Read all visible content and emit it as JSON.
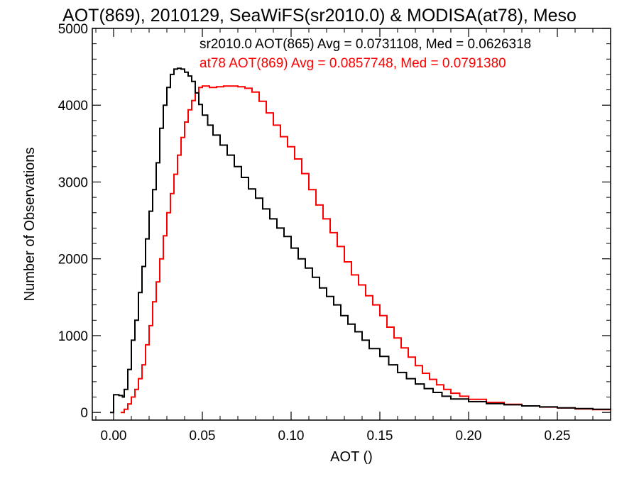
{
  "chart_data": {
    "type": "line",
    "title": "AOT(869), 2010129, SeaWiFS(sr2010.0) & MODISA(at78), Meso",
    "xlabel": "AOT ()",
    "ylabel": "Number of Observations",
    "xlim": [
      -0.012,
      0.28
    ],
    "ylim": [
      -100,
      5000
    ],
    "x_ticks": [
      0.0,
      0.05,
      0.1,
      0.15,
      0.2,
      0.25
    ],
    "x_tick_labels": [
      "0.00",
      "0.05",
      "0.10",
      "0.15",
      "0.20",
      "0.25"
    ],
    "y_ticks": [
      0,
      1000,
      2000,
      3000,
      4000,
      5000
    ],
    "y_tick_labels": [
      "0",
      "1000",
      "2000",
      "3000",
      "4000",
      "5000"
    ],
    "grid": false,
    "legend_position": "top-right",
    "series": [
      {
        "name": "sr2010.0 AOT(865) Avg = 0.0731108, Med = 0.0626318",
        "color": "#000000",
        "style": "step",
        "points": [
          [
            -0.002,
            0
          ],
          [
            0.0,
            230
          ],
          [
            0.003,
            220
          ],
          [
            0.005,
            200
          ],
          [
            0.006,
            300
          ],
          [
            0.008,
            560
          ],
          [
            0.01,
            940
          ],
          [
            0.012,
            1200
          ],
          [
            0.014,
            1560
          ],
          [
            0.016,
            1900
          ],
          [
            0.018,
            2260
          ],
          [
            0.02,
            2620
          ],
          [
            0.022,
            2900
          ],
          [
            0.024,
            3250
          ],
          [
            0.026,
            3700
          ],
          [
            0.028,
            4000
          ],
          [
            0.03,
            4230
          ],
          [
            0.032,
            4400
          ],
          [
            0.034,
            4470
          ],
          [
            0.036,
            4480
          ],
          [
            0.038,
            4470
          ],
          [
            0.04,
            4430
          ],
          [
            0.042,
            4380
          ],
          [
            0.044,
            4310
          ],
          [
            0.046,
            4160
          ],
          [
            0.048,
            4010
          ],
          [
            0.05,
            3870
          ],
          [
            0.053,
            3740
          ],
          [
            0.056,
            3610
          ],
          [
            0.06,
            3480
          ],
          [
            0.064,
            3350
          ],
          [
            0.068,
            3200
          ],
          [
            0.072,
            3060
          ],
          [
            0.076,
            2910
          ],
          [
            0.08,
            2790
          ],
          [
            0.084,
            2650
          ],
          [
            0.088,
            2520
          ],
          [
            0.092,
            2400
          ],
          [
            0.096,
            2290
          ],
          [
            0.1,
            2140
          ],
          [
            0.104,
            2000
          ],
          [
            0.108,
            1880
          ],
          [
            0.112,
            1760
          ],
          [
            0.116,
            1620
          ],
          [
            0.12,
            1510
          ],
          [
            0.124,
            1400
          ],
          [
            0.128,
            1260
          ],
          [
            0.132,
            1150
          ],
          [
            0.136,
            1050
          ],
          [
            0.14,
            940
          ],
          [
            0.144,
            830
          ],
          [
            0.15,
            730
          ],
          [
            0.155,
            620
          ],
          [
            0.16,
            520
          ],
          [
            0.165,
            440
          ],
          [
            0.17,
            370
          ],
          [
            0.175,
            310
          ],
          [
            0.18,
            260
          ],
          [
            0.185,
            210
          ],
          [
            0.19,
            175
          ],
          [
            0.2,
            140
          ],
          [
            0.21,
            115
          ],
          [
            0.22,
            100
          ],
          [
            0.23,
            85
          ],
          [
            0.24,
            72
          ],
          [
            0.25,
            60
          ],
          [
            0.26,
            50
          ],
          [
            0.27,
            40
          ],
          [
            0.28,
            32
          ]
        ]
      },
      {
        "name": "at78 AOT(869) Avg = 0.0857748, Med = 0.0791380",
        "color": "#ff0000",
        "style": "step",
        "points": [
          [
            0.004,
            0
          ],
          [
            0.006,
            40
          ],
          [
            0.008,
            110
          ],
          [
            0.01,
            200
          ],
          [
            0.012,
            300
          ],
          [
            0.014,
            440
          ],
          [
            0.016,
            620
          ],
          [
            0.018,
            880
          ],
          [
            0.02,
            1130
          ],
          [
            0.022,
            1440
          ],
          [
            0.024,
            1700
          ],
          [
            0.026,
            2000
          ],
          [
            0.028,
            2300
          ],
          [
            0.03,
            2600
          ],
          [
            0.032,
            2850
          ],
          [
            0.034,
            3100
          ],
          [
            0.036,
            3350
          ],
          [
            0.038,
            3580
          ],
          [
            0.04,
            3780
          ],
          [
            0.042,
            3940
          ],
          [
            0.044,
            4060
          ],
          [
            0.046,
            4160
          ],
          [
            0.048,
            4230
          ],
          [
            0.05,
            4250
          ],
          [
            0.054,
            4230
          ],
          [
            0.058,
            4240
          ],
          [
            0.062,
            4250
          ],
          [
            0.066,
            4250
          ],
          [
            0.07,
            4240
          ],
          [
            0.074,
            4220
          ],
          [
            0.078,
            4170
          ],
          [
            0.082,
            4050
          ],
          [
            0.086,
            3900
          ],
          [
            0.09,
            3740
          ],
          [
            0.094,
            3590
          ],
          [
            0.098,
            3460
          ],
          [
            0.102,
            3300
          ],
          [
            0.106,
            3110
          ],
          [
            0.11,
            2900
          ],
          [
            0.114,
            2700
          ],
          [
            0.118,
            2520
          ],
          [
            0.122,
            2340
          ],
          [
            0.126,
            2160
          ],
          [
            0.13,
            1960
          ],
          [
            0.134,
            1790
          ],
          [
            0.138,
            1660
          ],
          [
            0.142,
            1520
          ],
          [
            0.146,
            1400
          ],
          [
            0.15,
            1260
          ],
          [
            0.154,
            1110
          ],
          [
            0.158,
            970
          ],
          [
            0.162,
            840
          ],
          [
            0.166,
            720
          ],
          [
            0.17,
            610
          ],
          [
            0.174,
            510
          ],
          [
            0.178,
            430
          ],
          [
            0.182,
            360
          ],
          [
            0.186,
            300
          ],
          [
            0.19,
            250
          ],
          [
            0.195,
            210
          ],
          [
            0.2,
            170
          ],
          [
            0.21,
            130
          ],
          [
            0.22,
            105
          ],
          [
            0.23,
            85
          ],
          [
            0.24,
            70
          ],
          [
            0.25,
            58
          ],
          [
            0.26,
            46
          ],
          [
            0.27,
            36
          ],
          [
            0.28,
            28
          ]
        ]
      }
    ]
  }
}
